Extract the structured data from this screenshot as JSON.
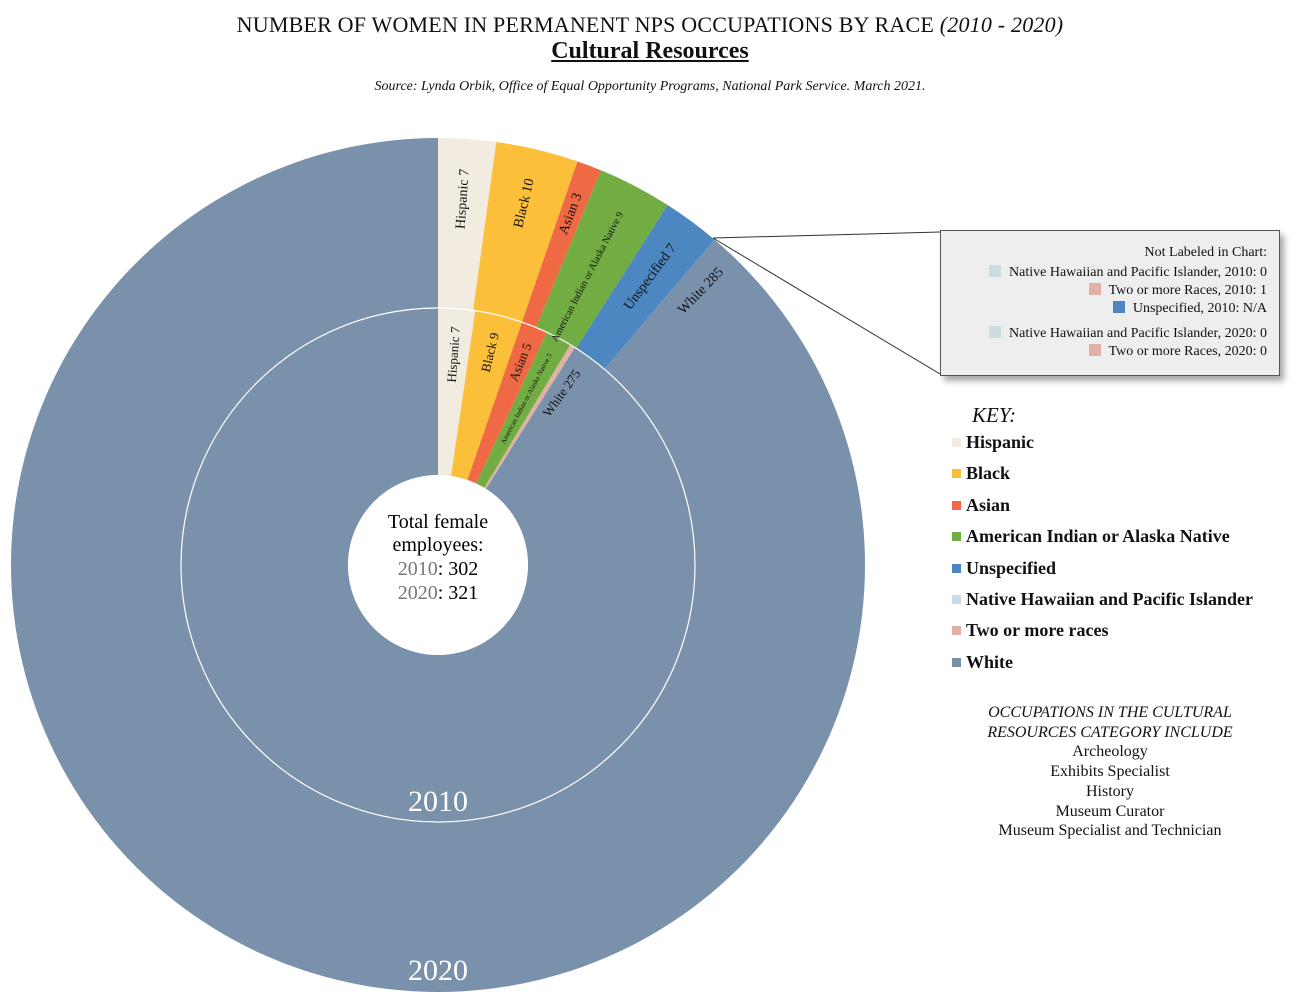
{
  "header": {
    "title": "NUMBER OF WOMEN IN PERMANENT NPS OCCUPATIONS BY RACE",
    "title_years": "(2010 - 2020)",
    "subtitle": "Cultural Resources",
    "source": "Source: Lynda Orbik, Office of Equal Opportunity Programs, National Park Service. March 2021."
  },
  "center": {
    "line1": "Total female",
    "line2": "employees:",
    "year_2010": "2010",
    "total_2010": ": 302",
    "year_2020": "2020",
    "total_2020": ": 321"
  },
  "colors": {
    "Hispanic": "#f2ece0",
    "Black": "#fbbf3a",
    "Asian": "#ef6a44",
    "American Indian or Alaska Native": "#72ad43",
    "Unspecified": "#4d87c1",
    "Native Hawaiian and Pacific Islander": "#c9dde2",
    "Two or more races": "#e2b1a5",
    "White": "#7a91ab"
  },
  "chart_data": {
    "type": "donut",
    "title": "NUMBER OF WOMEN IN PERMANENT NPS OCCUPATIONS BY RACE (2010 - 2020)",
    "subtitle": "Cultural Resources",
    "rings": [
      {
        "name": "2010",
        "position": "inner",
        "label": "2010",
        "slices": [
          {
            "category": "Hispanic",
            "value": 7,
            "label": "Hispanic 7"
          },
          {
            "category": "Black",
            "value": 9,
            "label": "Black 9"
          },
          {
            "category": "Asian",
            "value": 5,
            "label": "Asian 5"
          },
          {
            "category": "American Indian or Alaska Native",
            "value": 5,
            "label": "American Indian or Alaska Native 5"
          },
          {
            "category": "Native Hawaiian and Pacific Islander",
            "value": 0,
            "label": ""
          },
          {
            "category": "Two or more races",
            "value": 1,
            "label": ""
          },
          {
            "category": "White",
            "value": 275,
            "label": "White 275"
          }
        ]
      },
      {
        "name": "2020",
        "position": "outer",
        "label": "2020",
        "slices": [
          {
            "category": "Hispanic",
            "value": 7,
            "label": "Hispanic 7"
          },
          {
            "category": "Black",
            "value": 10,
            "label": "Black 10"
          },
          {
            "category": "Asian",
            "value": 3,
            "label": "Asian 3"
          },
          {
            "category": "American Indian or Alaska Native",
            "value": 9,
            "label": "American Indian or Alaska Native 9"
          },
          {
            "category": "Unspecified",
            "value": 7,
            "label": "Unspecified 7"
          },
          {
            "category": "Native Hawaiian and Pacific Islander",
            "value": 0,
            "label": ""
          },
          {
            "category": "Two or more races",
            "value": 0,
            "label": ""
          },
          {
            "category": "White",
            "value": 285,
            "label": "White 285"
          }
        ]
      }
    ]
  },
  "callout": {
    "title": "Not Labeled in Chart:",
    "items": [
      {
        "text": "Native Hawaiian and Pacific Islander, 2010: 0",
        "color": "#c9dde2"
      },
      {
        "text": "Two or more Races, 2010: 1",
        "color": "#e2b1a5"
      },
      {
        "text": "Unspecified, 2010: N/A",
        "color": "#4d87c1"
      },
      {
        "text": "Native Hawaiian and Pacific Islander, 2020: 0",
        "color": "#c9dde2"
      },
      {
        "text": "Two or more Races, 2020: 0",
        "color": "#e2b1a5"
      }
    ]
  },
  "key": {
    "title": "KEY:",
    "items": [
      {
        "label": "Hispanic",
        "color": "#f2ece0"
      },
      {
        "label": "Black",
        "color": "#fbbf3a"
      },
      {
        "label": "Asian",
        "color": "#ef6a44"
      },
      {
        "label": "American Indian or Alaska Native",
        "color": "#72ad43"
      },
      {
        "label": "Unspecified",
        "color": "#4d87c1"
      },
      {
        "label": "Native Hawaiian and Pacific Islander",
        "color": "#c9dde2"
      },
      {
        "label": "Two or more races",
        "color": "#e2b1a5"
      },
      {
        "label": "White",
        "color": "#7a91ab"
      }
    ]
  },
  "occupations": {
    "heading1": "OCCUPATIONS IN THE CULTURAL",
    "heading2": "RESOURCES CATEGORY INCLUDE",
    "items": [
      "Archeology",
      "Exhibits Specialist",
      "History",
      "Museum Curator",
      "Museum Specialist and Technician"
    ]
  }
}
